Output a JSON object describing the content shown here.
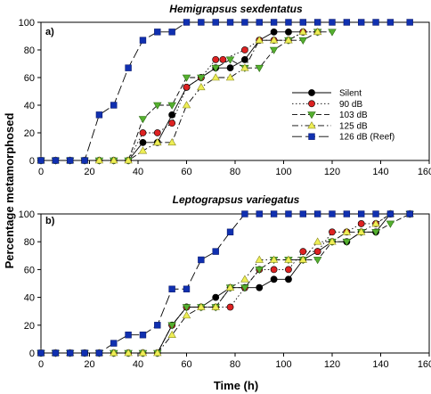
{
  "figure": {
    "ylabel": "Percentage metamorphosed",
    "xlabel": "Time (h)"
  },
  "legend": {
    "placement": "right-middle of panel a",
    "entries": [
      {
        "name": "Silent",
        "color": "#000000",
        "marker": "circle",
        "dash": "solid"
      },
      {
        "name": "90 dB",
        "color": "#dd2222",
        "marker": "circle",
        "dash": "dotted"
      },
      {
        "name": "103 dB",
        "color": "#55b030",
        "marker": "triangle-down",
        "dash": "dash"
      },
      {
        "name": "125 dB",
        "color": "#eeee55",
        "marker": "triangle-up",
        "dash": "dashdot"
      },
      {
        "name": "126 dB (Reef)",
        "color": "#1030b0",
        "marker": "square",
        "dash": "longdash"
      }
    ]
  },
  "chart_data": [
    {
      "type": "line",
      "panel_label": "a)",
      "title": "Hemigrapsus sexdentatus",
      "xlabel": "",
      "ylabel": "",
      "xlim": [
        0,
        160
      ],
      "ylim": [
        0,
        100
      ],
      "xticks": [
        0,
        20,
        40,
        60,
        80,
        100,
        120,
        140,
        160
      ],
      "yticks": [
        0,
        20,
        40,
        60,
        80,
        100
      ],
      "grid": false,
      "series": [
        {
          "name": "Silent",
          "color": "#000000",
          "x": [
            0,
            6,
            12,
            18,
            24,
            30,
            36,
            42,
            48,
            54,
            60,
            66,
            72,
            78,
            84,
            90,
            96,
            102,
            108
          ],
          "y": [
            0,
            0,
            0,
            0,
            0,
            0,
            0,
            13,
            13,
            33,
            53,
            60,
            67,
            67,
            73,
            87,
            93,
            93,
            93
          ]
        },
        {
          "name": "90 dB",
          "color": "#dd2222",
          "x": [
            0,
            6,
            12,
            18,
            24,
            30,
            36,
            42,
            48,
            54,
            60,
            66,
            72,
            75,
            84,
            90,
            96,
            102,
            108,
            114
          ],
          "y": [
            0,
            0,
            0,
            0,
            0,
            0,
            0,
            20,
            20,
            27,
            53,
            60,
            73,
            73,
            80,
            87,
            87,
            87,
            93,
            93
          ]
        },
        {
          "name": "103 dB",
          "color": "#55b030",
          "x": [
            0,
            6,
            12,
            18,
            24,
            30,
            36,
            42,
            48,
            54,
            60,
            66,
            72,
            78,
            84,
            90,
            96,
            102,
            108,
            114,
            120
          ],
          "y": [
            0,
            0,
            0,
            0,
            0,
            0,
            0,
            30,
            40,
            40,
            60,
            60,
            67,
            73,
            67,
            67,
            80,
            87,
            87,
            93,
            93
          ]
        },
        {
          "name": "125 dB",
          "color": "#eeee55",
          "x": [
            0,
            6,
            12,
            18,
            24,
            30,
            36,
            42,
            48,
            54,
            60,
            66,
            72,
            78,
            84,
            90,
            96,
            102,
            108,
            114
          ],
          "y": [
            0,
            0,
            0,
            0,
            0,
            0,
            0,
            7,
            13,
            13,
            40,
            53,
            60,
            60,
            67,
            87,
            87,
            87,
            93,
            93
          ]
        },
        {
          "name": "126 dB (Reef)",
          "color": "#1030b0",
          "x": [
            0,
            6,
            12,
            18,
            24,
            30,
            36,
            42,
            48,
            54,
            60,
            66,
            72,
            78,
            84,
            90,
            96,
            102,
            108,
            114,
            120,
            126,
            132,
            138,
            144,
            152
          ],
          "y": [
            0,
            0,
            0,
            0,
            33,
            40,
            67,
            87,
            93,
            93,
            100,
            100,
            100,
            100,
            100,
            100,
            100,
            100,
            100,
            100,
            100,
            100,
            100,
            100,
            100,
            100
          ]
        }
      ]
    },
    {
      "type": "line",
      "panel_label": "b)",
      "title": "Leptograpsus variegatus",
      "xlabel": "",
      "ylabel": "",
      "xlim": [
        0,
        160
      ],
      "ylim": [
        0,
        100
      ],
      "xticks": [
        0,
        20,
        40,
        60,
        80,
        100,
        120,
        140,
        160
      ],
      "yticks": [
        0,
        20,
        40,
        60,
        80,
        100
      ],
      "grid": false,
      "series": [
        {
          "name": "Silent",
          "color": "#000000",
          "x": [
            0,
            6,
            12,
            18,
            24,
            30,
            36,
            42,
            48,
            54,
            60,
            66,
            72,
            78,
            84,
            90,
            96,
            102,
            108,
            114,
            120,
            126,
            132,
            138,
            144,
            152
          ],
          "y": [
            0,
            0,
            0,
            0,
            0,
            0,
            0,
            0,
            0,
            20,
            33,
            33,
            40,
            47,
            47,
            47,
            53,
            53,
            67,
            73,
            80,
            80,
            87,
            87,
            100,
            100
          ]
        },
        {
          "name": "90 dB",
          "color": "#dd2222",
          "x": [
            0,
            6,
            12,
            18,
            24,
            30,
            36,
            42,
            48,
            54,
            60,
            66,
            72,
            78,
            84,
            90,
            96,
            102,
            108,
            114,
            120,
            126,
            132,
            138,
            144,
            152
          ],
          "y": [
            0,
            0,
            0,
            0,
            0,
            0,
            0,
            0,
            0,
            20,
            33,
            33,
            33,
            33,
            47,
            60,
            60,
            60,
            73,
            73,
            87,
            87,
            93,
            93,
            100,
            100
          ]
        },
        {
          "name": "103 dB",
          "color": "#55b030",
          "x": [
            0,
            6,
            12,
            18,
            24,
            30,
            36,
            42,
            48,
            54,
            60,
            66,
            72,
            78,
            84,
            90,
            96,
            102,
            108,
            114,
            120,
            126,
            132,
            138,
            144,
            152
          ],
          "y": [
            0,
            0,
            0,
            0,
            0,
            0,
            0,
            0,
            0,
            20,
            33,
            33,
            33,
            47,
            47,
            60,
            67,
            67,
            67,
            67,
            80,
            80,
            87,
            87,
            93,
            100
          ]
        },
        {
          "name": "125 dB",
          "color": "#eeee55",
          "x": [
            0,
            6,
            12,
            18,
            24,
            30,
            36,
            42,
            48,
            54,
            60,
            66,
            72,
            78,
            84,
            90,
            96,
            102,
            108,
            114,
            120,
            126,
            132,
            138,
            144,
            152
          ],
          "y": [
            0,
            0,
            0,
            0,
            0,
            0,
            0,
            0,
            0,
            13,
            27,
            33,
            33,
            47,
            53,
            67,
            67,
            67,
            67,
            80,
            80,
            87,
            87,
            93,
            100,
            100
          ]
        },
        {
          "name": "126 dB (Reef)",
          "color": "#1030b0",
          "x": [
            0,
            6,
            12,
            18,
            24,
            30,
            36,
            42,
            48,
            54,
            60,
            66,
            72,
            78,
            84,
            90,
            96,
            102,
            108,
            114,
            120,
            126,
            132,
            138,
            144,
            152
          ],
          "y": [
            0,
            0,
            0,
            0,
            0,
            7,
            13,
            13,
            20,
            46,
            46,
            67,
            73,
            87,
            100,
            100,
            100,
            100,
            100,
            100,
            100,
            100,
            100,
            100,
            100,
            100
          ]
        }
      ]
    }
  ]
}
